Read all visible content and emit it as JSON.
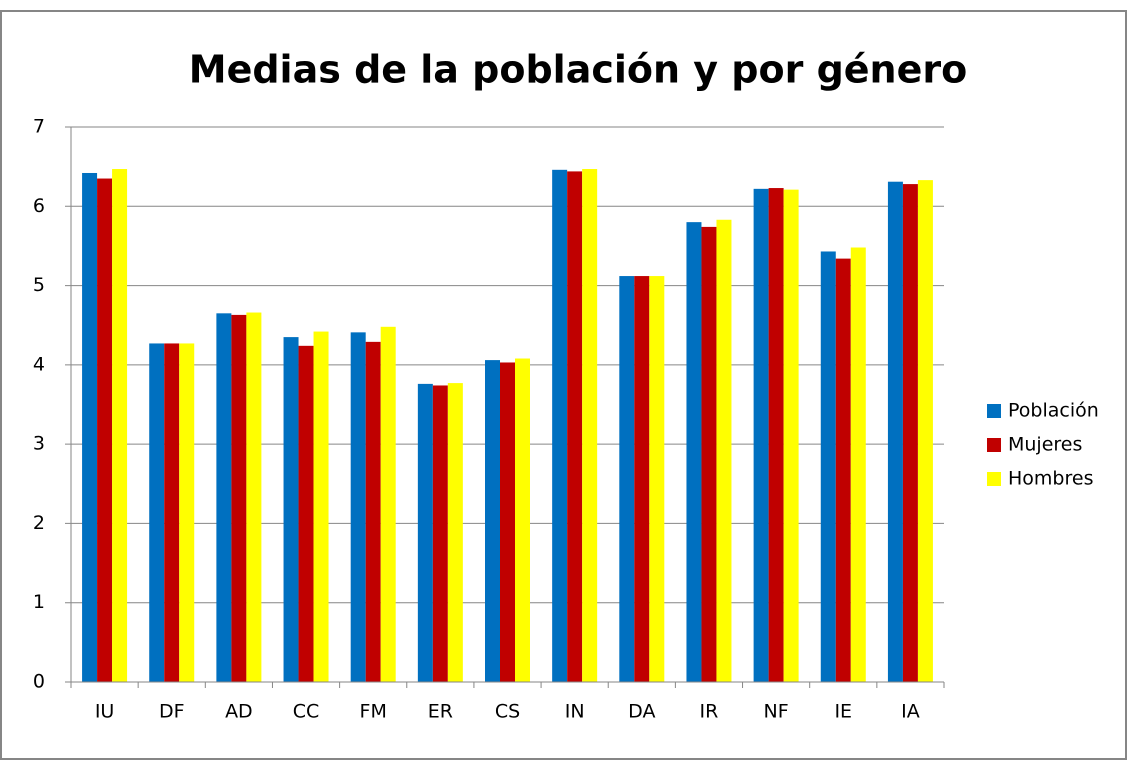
{
  "chart_data": {
    "type": "bar",
    "title": "Medias de la población y por género",
    "categories": [
      "IU",
      "DF",
      "AD",
      "CC",
      "FM",
      "ER",
      "CS",
      "IN",
      "DA",
      "IR",
      "NF",
      "IE",
      "IA"
    ],
    "series": [
      {
        "name": "Población",
        "color": "#0070c0",
        "values": [
          6.42,
          4.27,
          4.65,
          4.35,
          4.41,
          3.76,
          4.06,
          6.46,
          5.12,
          5.8,
          6.22,
          5.43,
          6.31
        ]
      },
      {
        "name": "Mujeres",
        "color": "#c00000",
        "values": [
          6.35,
          4.27,
          4.63,
          4.24,
          4.29,
          3.74,
          4.03,
          6.44,
          5.12,
          5.74,
          6.23,
          5.34,
          6.28
        ]
      },
      {
        "name": "Hombres",
        "color": "#ffff00",
        "values": [
          6.47,
          4.27,
          4.66,
          4.42,
          4.48,
          3.77,
          4.08,
          6.47,
          5.12,
          5.83,
          6.21,
          5.48,
          6.33
        ]
      }
    ],
    "ylim": [
      0,
      7
    ],
    "yticks": [
      0,
      1,
      2,
      3,
      4,
      5,
      6,
      7
    ],
    "grid": true,
    "legend": "right"
  }
}
